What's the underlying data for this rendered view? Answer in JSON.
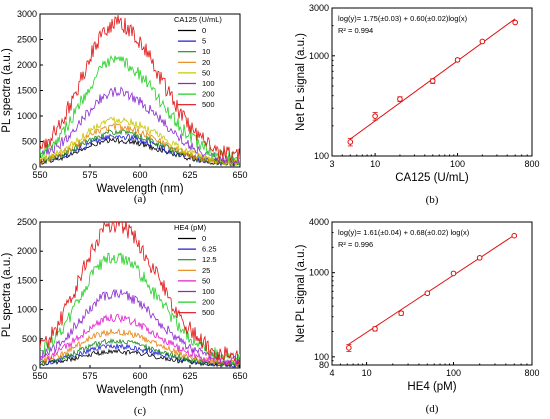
{
  "chart_data": [
    {
      "id": "a",
      "type": "line",
      "panel_label": "(a)",
      "xlabel": "Wavelength (nm)",
      "ylabel": "PL spectra (a.u.)",
      "xlim": [
        550,
        650
      ],
      "ylim": [
        0,
        3000
      ],
      "xticks": [
        550,
        575,
        600,
        625,
        650
      ],
      "yticks": [
        0,
        500,
        1000,
        1500,
        2000,
        2500,
        3000
      ],
      "legend_title": "CA125 (U/mL)",
      "legend_position": "top-right",
      "peak_wavelength": 588,
      "series": [
        {
          "name": "0",
          "peak": 460,
          "color": "#000000"
        },
        {
          "name": "5",
          "peak": 540,
          "color": "#1f1fd6"
        },
        {
          "name": "10",
          "peak": 620,
          "color": "#1a8a1a"
        },
        {
          "name": "20",
          "peak": 720,
          "color": "#e88410"
        },
        {
          "name": "50",
          "peak": 860,
          "color": "#c8c800"
        },
        {
          "name": "100",
          "peak": 1380,
          "color": "#8a28d0"
        },
        {
          "name": "200",
          "peak": 1960,
          "color": "#22d022"
        },
        {
          "name": "500",
          "peak": 2680,
          "color": "#e01010"
        }
      ]
    },
    {
      "id": "b",
      "type": "scatter",
      "panel_label": "(b)",
      "xlabel": "CA125 (U/mL)",
      "ylabel": "Net PL signal (a.u.)",
      "xscale": "log",
      "yscale": "log",
      "xlim": [
        3,
        800
      ],
      "ylim": [
        100,
        3000
      ],
      "xticks": [
        3,
        10,
        100,
        800
      ],
      "yticks": [
        100,
        1000,
        3000
      ],
      "equation": "log(y)= 1.75(±0.03) + 0.60(±0.02)log(x)",
      "r2": "R² = 0.994",
      "points": [
        {
          "x": 5,
          "y": 138,
          "err": 12
        },
        {
          "x": 10,
          "y": 250,
          "err": 22
        },
        {
          "x": 20,
          "y": 370,
          "err": 20
        },
        {
          "x": 50,
          "y": 560,
          "err": 30
        },
        {
          "x": 100,
          "y": 910,
          "err": 30
        },
        {
          "x": 200,
          "y": 1390,
          "err": 40
        },
        {
          "x": 500,
          "y": 2150,
          "err": 50
        }
      ],
      "fit": {
        "intercept": 1.75,
        "slope": 0.6,
        "x_from": 5,
        "x_to": 500
      },
      "color": "#e01010"
    },
    {
      "id": "c",
      "type": "line",
      "panel_label": "(c)",
      "xlabel": "Wavelength (nm)",
      "ylabel": "PL spectra (a.u.)",
      "xlim": [
        550,
        650
      ],
      "ylim": [
        0,
        2500
      ],
      "xticks": [
        550,
        575,
        600,
        625,
        650
      ],
      "yticks": [
        0,
        500,
        1000,
        1500,
        2000,
        2500
      ],
      "legend_title": "HE4 (pM)",
      "legend_position": "top-right",
      "peak_wavelength": 587,
      "series": [
        {
          "name": "0",
          "peak": 230,
          "color": "#000000"
        },
        {
          "name": "6.25",
          "peak": 320,
          "color": "#1f1fd6"
        },
        {
          "name": "12.5",
          "peak": 400,
          "color": "#1a8a1a"
        },
        {
          "name": "25",
          "peak": 560,
          "color": "#e88410"
        },
        {
          "name": "50",
          "peak": 790,
          "color": "#e020d0"
        },
        {
          "name": "100",
          "peak": 1190,
          "color": "#8a28d0"
        },
        {
          "name": "200",
          "peak": 1790,
          "color": "#22d022"
        },
        {
          "name": "500",
          "peak": 2330,
          "color": "#e01010"
        }
      ]
    },
    {
      "id": "d",
      "type": "scatter",
      "panel_label": "(d)",
      "xlabel": "HE4 (pM)",
      "ylabel": "Net PL signal (a.u.)",
      "xscale": "log",
      "yscale": "log",
      "xlim": [
        4,
        800
      ],
      "ylim": [
        80,
        4000
      ],
      "xticks": [
        4,
        10,
        100,
        800
      ],
      "yticks": [
        80,
        100,
        1000,
        4000
      ],
      "equation": "log(y)= 1.61(±0.04) + 0.68(±0.02) log(x)",
      "r2": "R² = 0.996",
      "points": [
        {
          "x": 6.25,
          "y": 128,
          "err": 12
        },
        {
          "x": 12.5,
          "y": 215,
          "err": 12
        },
        {
          "x": 25,
          "y": 330,
          "err": 18
        },
        {
          "x": 50,
          "y": 570,
          "err": 22
        },
        {
          "x": 100,
          "y": 980,
          "err": 30
        },
        {
          "x": 200,
          "y": 1500,
          "err": 40
        },
        {
          "x": 500,
          "y": 2750,
          "err": 60
        }
      ],
      "fit": {
        "intercept": 1.61,
        "slope": 0.68,
        "x_from": 6.25,
        "x_to": 500
      },
      "color": "#e01010"
    }
  ]
}
